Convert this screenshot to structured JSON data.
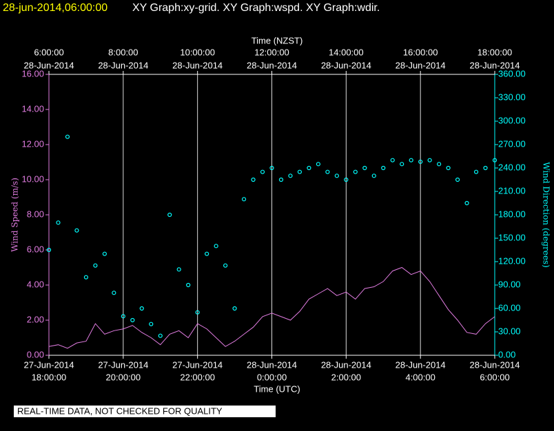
{
  "header": {
    "timestamp": "28-jun-2014,06:00:00",
    "graphs": "XY Graph:xy-grid.  XY Graph:wspd.  XY Graph:wdir."
  },
  "footer": {
    "notice": "REAL-TIME DATA, NOT CHECKED FOR QUALITY"
  },
  "chart_data": {
    "type": "line-scatter",
    "xlabel": "Time (UTC)",
    "x2label": "Time (NZST)",
    "ylabel": "Wind Speed (m/s)",
    "y2label": "Wind Direction (degrees)",
    "xlim": [
      "2014-06-27 18:00:00",
      "2014-06-28 06:00:00"
    ],
    "x2lim": [
      "2014-06-28 06:00:00",
      "2014-06-28 18:00:00"
    ],
    "xticks": [
      {
        "value": "2014-06-27 18:00:00",
        "label": [
          "27-Jun-2014",
          "18:00:00"
        ]
      },
      {
        "value": "2014-06-27 20:00:00",
        "label": [
          "27-Jun-2014",
          "20:00:00"
        ]
      },
      {
        "value": "2014-06-27 22:00:00",
        "label": [
          "27-Jun-2014",
          "22:00:00"
        ]
      },
      {
        "value": "2014-06-28 00:00:00",
        "label": [
          "28-Jun-2014",
          "0:00:00"
        ]
      },
      {
        "value": "2014-06-28 02:00:00",
        "label": [
          "28-Jun-2014",
          "2:00:00"
        ]
      },
      {
        "value": "2014-06-28 04:00:00",
        "label": [
          "28-Jun-2014",
          "4:00:00"
        ]
      },
      {
        "value": "2014-06-28 06:00:00",
        "label": [
          "28-Jun-2014",
          "6:00:00"
        ]
      }
    ],
    "x2ticks": [
      {
        "value": "2014-06-28 06:00:00",
        "label": [
          "6:00:00",
          "28-Jun-2014"
        ]
      },
      {
        "value": "2014-06-28 08:00:00",
        "label": [
          "8:00:00",
          "28-Jun-2014"
        ]
      },
      {
        "value": "2014-06-28 10:00:00",
        "label": [
          "10:00:00",
          "28-Jun-2014"
        ]
      },
      {
        "value": "2014-06-28 12:00:00",
        "label": [
          "12:00:00",
          "28-Jun-2014"
        ]
      },
      {
        "value": "2014-06-28 14:00:00",
        "label": [
          "14:00:00",
          "28-Jun-2014"
        ]
      },
      {
        "value": "2014-06-28 16:00:00",
        "label": [
          "16:00:00",
          "28-Jun-2014"
        ]
      },
      {
        "value": "2014-06-28 18:00:00",
        "label": [
          "18:00:00",
          "28-Jun-2014"
        ]
      }
    ],
    "ylim": [
      0,
      16
    ],
    "yticks": [
      {
        "value": 0,
        "label": "0.00"
      },
      {
        "value": 2,
        "label": "2.00"
      },
      {
        "value": 4,
        "label": "4.00"
      },
      {
        "value": 6,
        "label": "6.00"
      },
      {
        "value": 8,
        "label": "8.00"
      },
      {
        "value": 10,
        "label": "10.00"
      },
      {
        "value": 12,
        "label": "12.00"
      },
      {
        "value": 14,
        "label": "14.00"
      },
      {
        "value": 16,
        "label": "16.00"
      }
    ],
    "y2lim": [
      0,
      360
    ],
    "y2ticks": [
      {
        "value": 0,
        "label": "0.00"
      },
      {
        "value": 30,
        "label": "30.00"
      },
      {
        "value": 60,
        "label": "60.00"
      },
      {
        "value": 90,
        "label": "90.00"
      },
      {
        "value": 120,
        "label": "120.00"
      },
      {
        "value": 150,
        "label": "150.00"
      },
      {
        "value": 180,
        "label": "180.00"
      },
      {
        "value": 210,
        "label": "210.00"
      },
      {
        "value": 240,
        "label": "240.00"
      },
      {
        "value": 270,
        "label": "270.00"
      },
      {
        "value": 300,
        "label": "300.00"
      },
      {
        "value": 330,
        "label": "330.00"
      },
      {
        "value": 360,
        "label": "360.00"
      }
    ],
    "grid": true,
    "x": [
      "2014-06-27 18:00:00",
      "2014-06-27 18:15:00",
      "2014-06-27 18:30:00",
      "2014-06-27 18:45:00",
      "2014-06-27 19:00:00",
      "2014-06-27 19:15:00",
      "2014-06-27 19:30:00",
      "2014-06-27 19:45:00",
      "2014-06-27 20:00:00",
      "2014-06-27 20:15:00",
      "2014-06-27 20:30:00",
      "2014-06-27 20:45:00",
      "2014-06-27 21:00:00",
      "2014-06-27 21:15:00",
      "2014-06-27 21:30:00",
      "2014-06-27 21:45:00",
      "2014-06-27 22:00:00",
      "2014-06-27 22:15:00",
      "2014-06-27 22:30:00",
      "2014-06-27 22:45:00",
      "2014-06-27 23:00:00",
      "2014-06-27 23:15:00",
      "2014-06-27 23:30:00",
      "2014-06-27 23:45:00",
      "2014-06-28 00:00:00",
      "2014-06-28 00:15:00",
      "2014-06-28 00:30:00",
      "2014-06-28 00:45:00",
      "2014-06-28 01:00:00",
      "2014-06-28 01:15:00",
      "2014-06-28 01:30:00",
      "2014-06-28 01:45:00",
      "2014-06-28 02:00:00",
      "2014-06-28 02:15:00",
      "2014-06-28 02:30:00",
      "2014-06-28 02:45:00",
      "2014-06-28 03:00:00",
      "2014-06-28 03:15:00",
      "2014-06-28 03:30:00",
      "2014-06-28 03:45:00",
      "2014-06-28 04:00:00",
      "2014-06-28 04:15:00",
      "2014-06-28 04:30:00",
      "2014-06-28 04:45:00",
      "2014-06-28 05:00:00",
      "2014-06-28 05:15:00",
      "2014-06-28 05:30:00",
      "2014-06-28 05:45:00",
      "2014-06-28 06:00:00"
    ],
    "series": [
      {
        "name": "wspd",
        "kind": "line",
        "color": "#e07ce0",
        "values": [
          0.5,
          0.6,
          0.4,
          0.7,
          0.8,
          1.8,
          1.2,
          1.4,
          1.5,
          1.7,
          1.3,
          1.0,
          0.6,
          1.2,
          1.4,
          1.0,
          1.8,
          1.5,
          1.0,
          0.5,
          0.8,
          1.2,
          1.6,
          2.2,
          2.4,
          2.2,
          2.0,
          2.5,
          3.2,
          3.5,
          3.8,
          3.4,
          3.6,
          3.2,
          3.8,
          3.9,
          4.2,
          4.8,
          5.0,
          4.6,
          4.8,
          4.2,
          3.4,
          2.6,
          2.0,
          1.3,
          1.2,
          1.8,
          2.2
        ]
      },
      {
        "name": "wdir",
        "kind": "scatter",
        "axis": "y2",
        "color": "#00ffff",
        "values": [
          135,
          170,
          280,
          160,
          100,
          115,
          130,
          80,
          50,
          45,
          60,
          40,
          25,
          180,
          110,
          90,
          55,
          130,
          140,
          115,
          60,
          200,
          225,
          235,
          240,
          225,
          230,
          235,
          240,
          245,
          235,
          230,
          225,
          235,
          240,
          230,
          240,
          250,
          245,
          250,
          248,
          250,
          245,
          240,
          225,
          195,
          235,
          240,
          250
        ]
      }
    ]
  }
}
